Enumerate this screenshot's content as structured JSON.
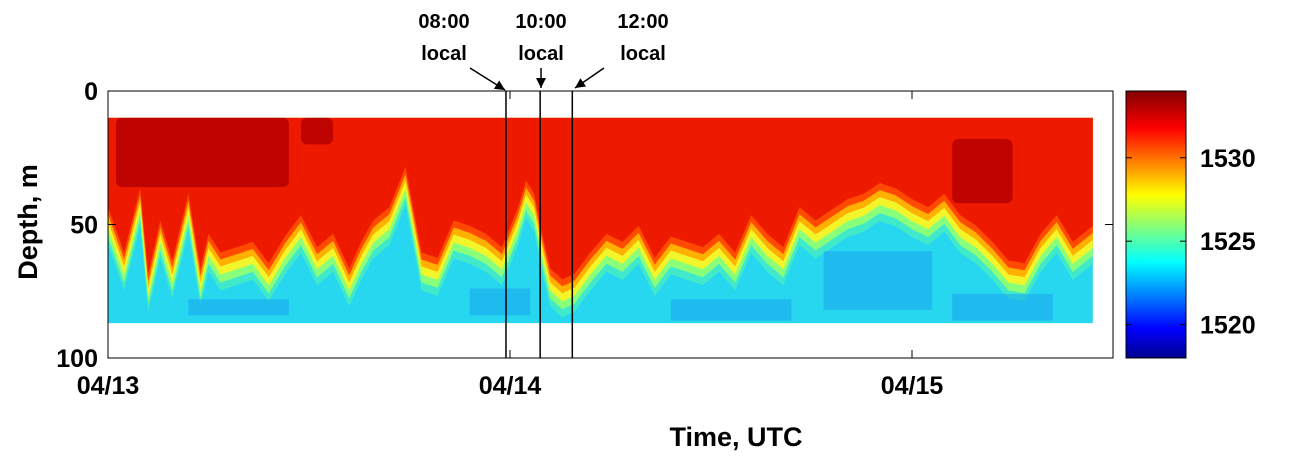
{
  "chart_data": {
    "type": "heatmap",
    "title": "",
    "xlabel": "Time, UTC",
    "ylabel": "Depth, m",
    "x_ticks": [
      "04/13",
      "04/14",
      "04/15"
    ],
    "x_tick_values_days": [
      0,
      1,
      2
    ],
    "xlim_days": [
      0,
      2.5
    ],
    "y_ticks": [
      0,
      50,
      100
    ],
    "ylim": [
      0,
      100
    ],
    "y_reversed": true,
    "measured_depth_range": [
      10,
      87
    ],
    "measured_time_range_days": [
      0,
      2.45
    ],
    "colorbar": {
      "ticks": [
        1520,
        1525,
        1530
      ],
      "range": [
        1518,
        1534
      ],
      "colormap": "jet"
    },
    "annotations": [
      {
        "label_line1": "08:00",
        "label_line2": "local",
        "x_days": 0.99
      },
      {
        "label_line1": "10:00",
        "label_line2": "local",
        "x_days": 1.075
      },
      {
        "label_line1": "12:00",
        "label_line2": "local",
        "x_days": 1.155
      }
    ],
    "thermocline_profile": {
      "description": "depth (m) of the warm-to-cold transition versus time",
      "time_days": [
        0.0,
        0.04,
        0.08,
        0.1,
        0.13,
        0.16,
        0.2,
        0.23,
        0.25,
        0.28,
        0.32,
        0.36,
        0.4,
        0.44,
        0.48,
        0.52,
        0.56,
        0.6,
        0.63,
        0.66,
        0.7,
        0.74,
        0.78,
        0.82,
        0.86,
        0.9,
        0.94,
        0.98,
        1.02,
        1.04,
        1.06,
        1.08,
        1.1,
        1.13,
        1.16,
        1.2,
        1.24,
        1.28,
        1.32,
        1.36,
        1.4,
        1.44,
        1.48,
        1.52,
        1.56,
        1.6,
        1.64,
        1.68,
        1.72,
        1.76,
        1.8,
        1.84,
        1.88,
        1.92,
        1.96,
        2.0,
        2.04,
        2.08,
        2.12,
        2.16,
        2.2,
        2.24,
        2.28,
        2.32,
        2.36,
        2.4,
        2.45
      ],
      "depth_m": [
        45,
        62,
        38,
        70,
        50,
        65,
        40,
        68,
        55,
        62,
        60,
        58,
        66,
        56,
        48,
        60,
        55,
        68,
        58,
        50,
        45,
        30,
        62,
        64,
        50,
        52,
        55,
        60,
        45,
        35,
        40,
        55,
        68,
        72,
        70,
        62,
        55,
        58,
        52,
        64,
        56,
        58,
        60,
        55,
        62,
        48,
        55,
        60,
        45,
        50,
        46,
        42,
        40,
        36,
        38,
        42,
        45,
        40,
        48,
        52,
        58,
        65,
        66,
        55,
        48,
        58,
        52
      ]
    }
  }
}
